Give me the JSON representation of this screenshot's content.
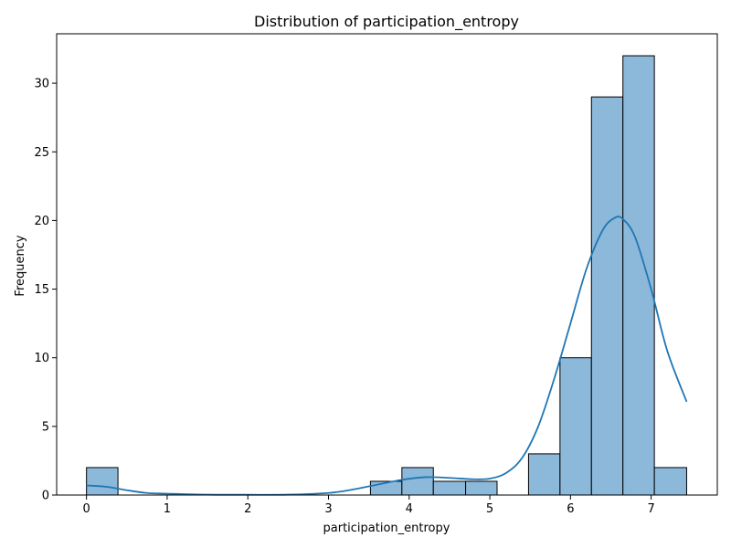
{
  "chart_data": {
    "type": "bar",
    "title": "Distribution of participation_entropy",
    "xlabel": "participation_entropy",
    "ylabel": "Frequency",
    "xlim": [
      -0.37,
      7.82
    ],
    "ylim": [
      0,
      33.6
    ],
    "xticks": [
      0,
      1,
      2,
      3,
      4,
      5,
      6,
      7
    ],
    "yticks": [
      0,
      5,
      10,
      15,
      20,
      25,
      30
    ],
    "bins": [
      {
        "x0": 0.0,
        "x1": 0.39,
        "count": 2
      },
      {
        "x0": 0.39,
        "x1": 0.78,
        "count": 0
      },
      {
        "x0": 0.78,
        "x1": 1.17,
        "count": 0
      },
      {
        "x0": 1.17,
        "x1": 1.57,
        "count": 0
      },
      {
        "x0": 1.57,
        "x1": 1.96,
        "count": 0
      },
      {
        "x0": 1.96,
        "x1": 2.35,
        "count": 0
      },
      {
        "x0": 2.35,
        "x1": 2.74,
        "count": 0
      },
      {
        "x0": 2.74,
        "x1": 3.13,
        "count": 0
      },
      {
        "x0": 3.13,
        "x1": 3.52,
        "count": 0
      },
      {
        "x0": 3.52,
        "x1": 3.91,
        "count": 1
      },
      {
        "x0": 3.91,
        "x1": 4.3,
        "count": 2
      },
      {
        "x0": 4.3,
        "x1": 4.7,
        "count": 1
      },
      {
        "x0": 4.7,
        "x1": 5.09,
        "count": 1
      },
      {
        "x0": 5.09,
        "x1": 5.48,
        "count": 0
      },
      {
        "x0": 5.48,
        "x1": 5.87,
        "count": 3
      },
      {
        "x0": 5.87,
        "x1": 6.26,
        "count": 10
      },
      {
        "x0": 6.26,
        "x1": 6.65,
        "count": 29
      },
      {
        "x0": 6.65,
        "x1": 7.04,
        "count": 32
      },
      {
        "x0": 7.04,
        "x1": 7.44,
        "count": 2
      }
    ],
    "kde": {
      "x": [
        0.0,
        0.25,
        0.5,
        0.75,
        1.0,
        1.5,
        2.0,
        2.5,
        3.0,
        3.3,
        3.6,
        3.9,
        4.2,
        4.5,
        4.8,
        5.0,
        5.2,
        5.4,
        5.6,
        5.8,
        6.0,
        6.2,
        6.4,
        6.55,
        6.65,
        6.8,
        7.0,
        7.2,
        7.44
      ],
      "y": [
        0.7,
        0.6,
        0.35,
        0.15,
        0.1,
        0.03,
        0.02,
        0.03,
        0.15,
        0.4,
        0.75,
        1.1,
        1.3,
        1.25,
        1.15,
        1.2,
        1.6,
        2.7,
        5.0,
        8.5,
        12.5,
        16.5,
        19.3,
        20.2,
        20.1,
        18.8,
        15.0,
        10.5,
        6.8
      ]
    },
    "bar_color": "#8cb8da",
    "bar_edge_color": "#000000",
    "kde_color": "#1f77b4",
    "grid": false,
    "legend": "none"
  }
}
